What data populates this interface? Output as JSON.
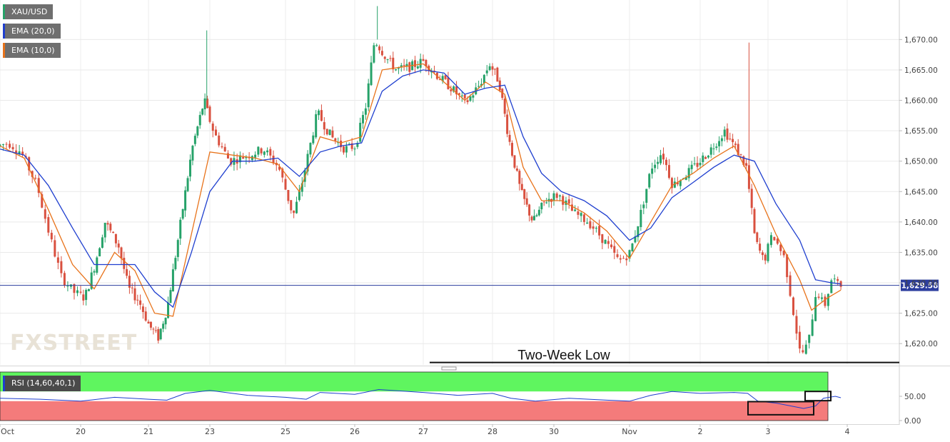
{
  "legend": [
    {
      "label": "XAU/USD",
      "color": "#26a269"
    },
    {
      "label": "EMA (20,0)",
      "color": "#1f3fcf"
    },
    {
      "label": "EMA (10,0)",
      "color": "#e8731b"
    }
  ],
  "watermark": "FXSTREET",
  "rsi": {
    "label": "RSI (14,60,40,1)",
    "upper": 60,
    "lower": 40,
    "y_ticks": [
      "50.00",
      "0.00"
    ],
    "zone_colors": {
      "overbought": "#5ff55f",
      "oversold": "#f47b7b"
    }
  },
  "annotation": "Two-Week Low",
  "chart_data": {
    "type": "candlestick",
    "title": "",
    "instrument": "XAU/USD",
    "x_tick_labels": [
      "Oct",
      "20",
      "21",
      "23",
      "25",
      "26",
      "27",
      "28",
      "30",
      "Nov",
      "2",
      "3",
      "4"
    ],
    "y_tick_labels": [
      "1,670.00",
      "1,665.00",
      "1,660.00",
      "1,655.00",
      "1,650.00",
      "1,645.00",
      "1,640.00",
      "1,635.00",
      "1,630.00",
      "1,625.00",
      "1,620.00"
    ],
    "ylim": [
      1616.5,
      1676.5
    ],
    "current_price": 1629.58,
    "current_price_label": "1,629.58",
    "support_level": 1616.9,
    "colors": {
      "up": "#26a269",
      "down": "#d9503f",
      "ema20": "#1f3fcf",
      "ema10": "#e8731b"
    },
    "series_names": [
      "XAU/USD",
      "EMA (20,0)",
      "EMA (10,0)"
    ],
    "price_path": [
      {
        "d": 0,
        "p": 1652.5
      },
      {
        "d": 0.15,
        "p": 1653.0
      },
      {
        "d": 0.3,
        "p": 1651.5
      },
      {
        "d": 0.5,
        "p": 1646.0
      },
      {
        "d": 0.65,
        "p": 1638.0
      },
      {
        "d": 0.8,
        "p": 1631.0
      },
      {
        "d": 0.95,
        "p": 1628.5
      },
      {
        "d": 1.1,
        "p": 1627.5
      },
      {
        "d": 1.25,
        "p": 1633.0
      },
      {
        "d": 1.4,
        "p": 1640.0
      },
      {
        "d": 1.6,
        "p": 1636.0
      },
      {
        "d": 1.75,
        "p": 1629.0
      },
      {
        "d": 1.9,
        "p": 1627.0
      },
      {
        "d": 2.05,
        "p": 1623.0
      },
      {
        "d": 2.2,
        "p": 1621.0
      },
      {
        "d": 2.35,
        "p": 1626.0
      },
      {
        "d": 2.55,
        "p": 1639.0
      },
      {
        "d": 2.75,
        "p": 1652.0
      },
      {
        "d": 2.95,
        "p": 1660.0
      },
      {
        "d": 3.1,
        "p": 1654.5
      },
      {
        "d": 3.3,
        "p": 1650.0
      },
      {
        "d": 3.55,
        "p": 1651.0
      },
      {
        "d": 3.75,
        "p": 1652.0
      },
      {
        "d": 3.95,
        "p": 1649.0
      },
      {
        "d": 4.15,
        "p": 1641.0
      },
      {
        "d": 4.25,
        "p": 1645.0
      },
      {
        "d": 4.5,
        "p": 1658.0
      },
      {
        "d": 4.7,
        "p": 1654.0
      },
      {
        "d": 4.9,
        "p": 1652.0
      },
      {
        "d": 5.05,
        "p": 1652.5
      },
      {
        "d": 5.2,
        "p": 1659.0
      },
      {
        "d": 5.33,
        "p": 1670.0
      },
      {
        "d": 5.5,
        "p": 1667.0
      },
      {
        "d": 5.65,
        "p": 1665.0
      },
      {
        "d": 5.85,
        "p": 1665.5
      },
      {
        "d": 6.05,
        "p": 1666.5
      },
      {
        "d": 6.25,
        "p": 1664.0
      },
      {
        "d": 6.45,
        "p": 1662.0
      },
      {
        "d": 6.65,
        "p": 1659.5
      },
      {
        "d": 6.85,
        "p": 1662.5
      },
      {
        "d": 7.0,
        "p": 1666.0
      },
      {
        "d": 7.15,
        "p": 1663.0
      },
      {
        "d": 7.3,
        "p": 1654.0
      },
      {
        "d": 7.5,
        "p": 1645.0
      },
      {
        "d": 7.7,
        "p": 1640.0
      },
      {
        "d": 7.9,
        "p": 1643.5
      },
      {
        "d": 8.1,
        "p": 1644.5
      },
      {
        "d": 8.3,
        "p": 1641.5
      },
      {
        "d": 8.5,
        "p": 1640.0
      },
      {
        "d": 8.7,
        "p": 1637.0
      },
      {
        "d": 8.9,
        "p": 1633.5
      },
      {
        "d": 9.05,
        "p": 1635.0
      },
      {
        "d": 9.2,
        "p": 1641.5
      },
      {
        "d": 9.35,
        "p": 1649.0
      },
      {
        "d": 9.5,
        "p": 1651.5
      },
      {
        "d": 9.65,
        "p": 1646.0
      },
      {
        "d": 9.85,
        "p": 1648.0
      },
      {
        "d": 10.0,
        "p": 1649.5
      },
      {
        "d": 10.2,
        "p": 1652.0
      },
      {
        "d": 10.4,
        "p": 1655.0
      },
      {
        "d": 10.6,
        "p": 1651.5
      },
      {
        "d": 10.72,
        "p": 1649.0
      },
      {
        "d": 10.85,
        "p": 1637.0
      },
      {
        "d": 10.98,
        "p": 1633.5
      },
      {
        "d": 11.1,
        "p": 1638.0
      },
      {
        "d": 11.25,
        "p": 1634.0
      },
      {
        "d": 11.35,
        "p": 1626.0
      },
      {
        "d": 11.45,
        "p": 1618.0
      },
      {
        "d": 11.55,
        "p": 1620.0
      },
      {
        "d": 11.65,
        "p": 1629.0
      },
      {
        "d": 11.75,
        "p": 1626.0
      },
      {
        "d": 11.85,
        "p": 1631.0
      },
      {
        "d": 11.92,
        "p": 1629.58
      }
    ],
    "ema20_path": [
      {
        "d": 0,
        "p": 1652.0
      },
      {
        "d": 0.3,
        "p": 1651.0
      },
      {
        "d": 0.6,
        "p": 1646.0
      },
      {
        "d": 0.9,
        "p": 1639.0
      },
      {
        "d": 1.2,
        "p": 1633.0
      },
      {
        "d": 1.5,
        "p": 1633.0
      },
      {
        "d": 1.8,
        "p": 1633.0
      },
      {
        "d": 2.1,
        "p": 1628.5
      },
      {
        "d": 2.4,
        "p": 1626.0
      },
      {
        "d": 2.7,
        "p": 1635.0
      },
      {
        "d": 3.0,
        "p": 1645.0
      },
      {
        "d": 3.3,
        "p": 1650.0
      },
      {
        "d": 3.6,
        "p": 1650.0
      },
      {
        "d": 3.9,
        "p": 1650.5
      },
      {
        "d": 4.2,
        "p": 1647.5
      },
      {
        "d": 4.5,
        "p": 1651.5
      },
      {
        "d": 4.8,
        "p": 1652.5
      },
      {
        "d": 5.1,
        "p": 1653.0
      },
      {
        "d": 5.4,
        "p": 1661.5
      },
      {
        "d": 5.7,
        "p": 1664.0
      },
      {
        "d": 6.0,
        "p": 1665.0
      },
      {
        "d": 6.3,
        "p": 1664.5
      },
      {
        "d": 6.6,
        "p": 1661.0
      },
      {
        "d": 6.9,
        "p": 1662.0
      },
      {
        "d": 7.2,
        "p": 1662.5
      },
      {
        "d": 7.5,
        "p": 1654.0
      },
      {
        "d": 7.8,
        "p": 1648.0
      },
      {
        "d": 8.1,
        "p": 1645.0
      },
      {
        "d": 8.4,
        "p": 1643.5
      },
      {
        "d": 8.7,
        "p": 1641.0
      },
      {
        "d": 9.0,
        "p": 1637.0
      },
      {
        "d": 9.3,
        "p": 1639.0
      },
      {
        "d": 9.6,
        "p": 1644.0
      },
      {
        "d": 9.9,
        "p": 1646.5
      },
      {
        "d": 10.2,
        "p": 1649.0
      },
      {
        "d": 10.5,
        "p": 1651.0
      },
      {
        "d": 10.8,
        "p": 1650.0
      },
      {
        "d": 11.1,
        "p": 1643.0
      },
      {
        "d": 11.4,
        "p": 1637.0
      },
      {
        "d": 11.6,
        "p": 1630.5
      },
      {
        "d": 11.8,
        "p": 1630.0
      },
      {
        "d": 11.92,
        "p": 1629.8
      }
    ],
    "ema10_path": [
      {
        "d": 0,
        "p": 1652.5
      },
      {
        "d": 0.3,
        "p": 1650.5
      },
      {
        "d": 0.6,
        "p": 1642.0
      },
      {
        "d": 0.9,
        "p": 1633.0
      },
      {
        "d": 1.2,
        "p": 1629.0
      },
      {
        "d": 1.5,
        "p": 1635.0
      },
      {
        "d": 1.8,
        "p": 1632.0
      },
      {
        "d": 2.1,
        "p": 1625.0
      },
      {
        "d": 2.4,
        "p": 1624.5
      },
      {
        "d": 2.7,
        "p": 1638.0
      },
      {
        "d": 3.0,
        "p": 1651.5
      },
      {
        "d": 3.3,
        "p": 1651.0
      },
      {
        "d": 3.6,
        "p": 1650.5
      },
      {
        "d": 3.9,
        "p": 1649.5
      },
      {
        "d": 4.2,
        "p": 1645.0
      },
      {
        "d": 4.5,
        "p": 1654.0
      },
      {
        "d": 4.8,
        "p": 1653.0
      },
      {
        "d": 5.1,
        "p": 1654.0
      },
      {
        "d": 5.4,
        "p": 1665.0
      },
      {
        "d": 5.7,
        "p": 1665.5
      },
      {
        "d": 6.0,
        "p": 1666.0
      },
      {
        "d": 6.3,
        "p": 1663.0
      },
      {
        "d": 6.6,
        "p": 1660.0
      },
      {
        "d": 6.9,
        "p": 1663.0
      },
      {
        "d": 7.2,
        "p": 1661.0
      },
      {
        "d": 7.5,
        "p": 1649.0
      },
      {
        "d": 7.8,
        "p": 1643.5
      },
      {
        "d": 8.1,
        "p": 1643.5
      },
      {
        "d": 8.4,
        "p": 1641.5
      },
      {
        "d": 8.7,
        "p": 1638.5
      },
      {
        "d": 9.0,
        "p": 1634.0
      },
      {
        "d": 9.3,
        "p": 1640.0
      },
      {
        "d": 9.6,
        "p": 1646.0
      },
      {
        "d": 9.9,
        "p": 1648.0
      },
      {
        "d": 10.2,
        "p": 1650.5
      },
      {
        "d": 10.5,
        "p": 1652.5
      },
      {
        "d": 10.8,
        "p": 1646.0
      },
      {
        "d": 11.1,
        "p": 1638.0
      },
      {
        "d": 11.4,
        "p": 1630.5
      },
      {
        "d": 11.55,
        "p": 1625.5
      },
      {
        "d": 11.75,
        "p": 1627.5
      },
      {
        "d": 11.92,
        "p": 1628.8
      }
    ],
    "rsi_ylim": [
      0,
      100
    ],
    "rsi_path": [
      {
        "d": 0,
        "p": 46
      },
      {
        "d": 0.5,
        "p": 44
      },
      {
        "d": 1.0,
        "p": 40
      },
      {
        "d": 1.5,
        "p": 48
      },
      {
        "d": 2.0,
        "p": 44
      },
      {
        "d": 2.3,
        "p": 42
      },
      {
        "d": 2.6,
        "p": 56
      },
      {
        "d": 3.0,
        "p": 62
      },
      {
        "d": 3.5,
        "p": 52
      },
      {
        "d": 4.0,
        "p": 48
      },
      {
        "d": 4.3,
        "p": 44
      },
      {
        "d": 4.5,
        "p": 58
      },
      {
        "d": 5.0,
        "p": 54
      },
      {
        "d": 5.35,
        "p": 64
      },
      {
        "d": 6.0,
        "p": 58
      },
      {
        "d": 6.5,
        "p": 52
      },
      {
        "d": 7.0,
        "p": 56
      },
      {
        "d": 7.3,
        "p": 46
      },
      {
        "d": 7.7,
        "p": 40
      },
      {
        "d": 8.2,
        "p": 46
      },
      {
        "d": 8.7,
        "p": 42
      },
      {
        "d": 9.0,
        "p": 40
      },
      {
        "d": 9.3,
        "p": 52
      },
      {
        "d": 9.6,
        "p": 60
      },
      {
        "d": 10.0,
        "p": 56
      },
      {
        "d": 10.5,
        "p": 58
      },
      {
        "d": 10.7,
        "p": 56
      },
      {
        "d": 10.85,
        "p": 40
      },
      {
        "d": 11.1,
        "p": 36
      },
      {
        "d": 11.45,
        "p": 25
      },
      {
        "d": 11.6,
        "p": 30
      },
      {
        "d": 11.7,
        "p": 46
      },
      {
        "d": 11.85,
        "p": 50
      },
      {
        "d": 11.92,
        "p": 47
      }
    ]
  }
}
